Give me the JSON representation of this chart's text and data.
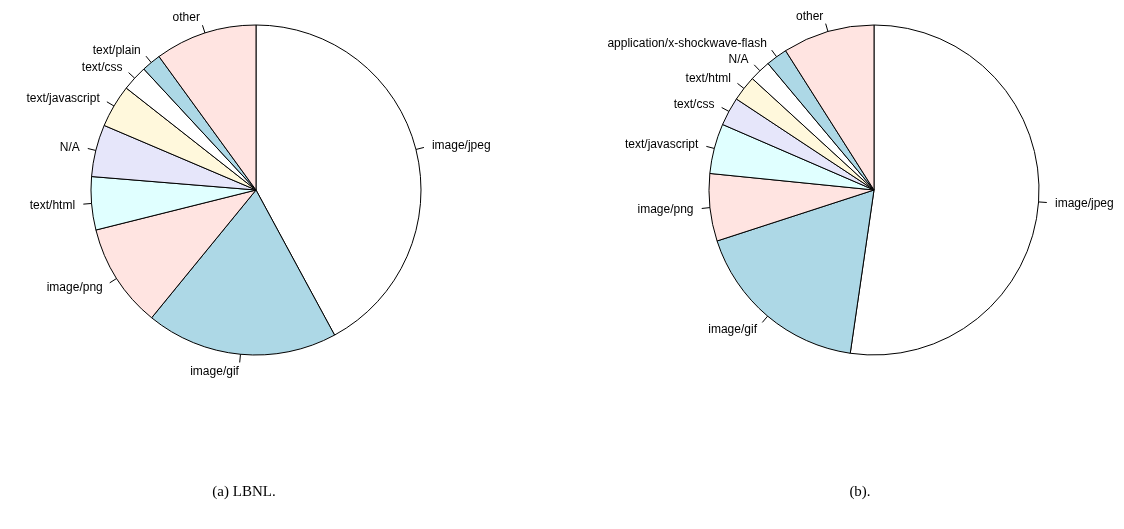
{
  "chart_data": [
    {
      "type": "pie",
      "title": "(a) LBNL.",
      "categories": [
        "image/jpeg",
        "image/gif",
        "image/png",
        "text/html",
        "N/A",
        "text/javascript",
        "text/css",
        "text/plain",
        "other"
      ],
      "values": [
        42.1,
        18.8,
        10.2,
        5.2,
        5.1,
        4.2,
        2.5,
        1.9,
        10.0
      ],
      "colors": [
        "#ffffff",
        "#add8e6",
        "#ffe4e1",
        "#e0ffff",
        "#e6e6fa",
        "#fff8dc",
        "#ffffff",
        "#add8e6",
        "#ffe4e1"
      ]
    },
    {
      "type": "pie",
      "title": "(b).",
      "categories": [
        "image/jpeg",
        "image/gif",
        "image/png",
        "text/javascript",
        "text/css",
        "text/html",
        "N/A",
        "application/x-shockwave-flash",
        "other"
      ],
      "values": [
        52.3,
        17.7,
        6.6,
        4.9,
        2.8,
        2.5,
        2.1,
        2.1,
        9.0
      ],
      "colors": [
        "#ffffff",
        "#add8e6",
        "#ffe4e1",
        "#e0ffff",
        "#e6e6fa",
        "#fff8dc",
        "#ffffff",
        "#add8e6",
        "#ffe4e1"
      ]
    }
  ]
}
